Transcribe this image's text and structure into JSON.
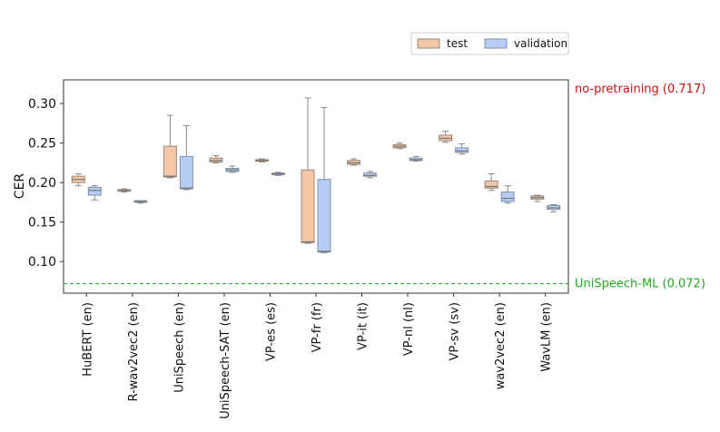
{
  "chart_data": {
    "type": "box",
    "title": "",
    "xlabel": "",
    "ylabel": "CER",
    "ylim": [
      0.06,
      0.33
    ],
    "yticks": [
      0.1,
      0.15,
      0.2,
      0.25,
      0.3
    ],
    "ytick_labels": [
      "0.10",
      "0.15",
      "0.20",
      "0.25",
      "0.30"
    ],
    "legend": {
      "position": "top-right",
      "entries": [
        "test",
        "validation"
      ]
    },
    "series": [
      {
        "name": "test",
        "color": "#f2c6a6",
        "edge": "#9a8878"
      },
      {
        "name": "validation",
        "color": "#b6cdf3",
        "edge": "#8090a8"
      }
    ],
    "categories": [
      "HuBERT (en)",
      "R-wav2vec2 (en)",
      "UniSpeech (en)",
      "UniSpeech-SAT (en)",
      "VP-es (es)",
      "VP-fr (fr)",
      "VP-it (it)",
      "VP-nl (nl)",
      "VP-sv (sv)",
      "wav2vec2 (en)",
      "WavLM (en)"
    ],
    "boxes": {
      "test": [
        {
          "min": 0.196,
          "q1": 0.2,
          "median": 0.204,
          "q3": 0.208,
          "max": 0.211
        },
        {
          "min": 0.188,
          "q1": 0.189,
          "median": 0.19,
          "q3": 0.191,
          "max": 0.192
        },
        {
          "min": 0.206,
          "q1": 0.207,
          "median": 0.208,
          "q3": 0.246,
          "max": 0.285
        },
        {
          "min": 0.225,
          "q1": 0.226,
          "median": 0.228,
          "q3": 0.231,
          "max": 0.234
        },
        {
          "min": 0.226,
          "q1": 0.227,
          "median": 0.228,
          "q3": 0.229,
          "max": 0.23
        },
        {
          "min": 0.123,
          "q1": 0.124,
          "median": 0.125,
          "q3": 0.216,
          "max": 0.307
        },
        {
          "min": 0.222,
          "q1": 0.223,
          "median": 0.225,
          "q3": 0.228,
          "max": 0.23
        },
        {
          "min": 0.243,
          "q1": 0.244,
          "median": 0.246,
          "q3": 0.248,
          "max": 0.25
        },
        {
          "min": 0.251,
          "q1": 0.253,
          "median": 0.256,
          "q3": 0.26,
          "max": 0.265
        },
        {
          "min": 0.19,
          "q1": 0.193,
          "median": 0.195,
          "q3": 0.202,
          "max": 0.211
        },
        {
          "min": 0.176,
          "q1": 0.179,
          "median": 0.181,
          "q3": 0.183,
          "max": 0.184
        }
      ],
      "validation": [
        {
          "min": 0.178,
          "q1": 0.184,
          "median": 0.19,
          "q3": 0.194,
          "max": 0.196
        },
        {
          "min": 0.174,
          "q1": 0.175,
          "median": 0.176,
          "q3": 0.177,
          "max": 0.177
        },
        {
          "min": 0.191,
          "q1": 0.192,
          "median": 0.193,
          "q3": 0.233,
          "max": 0.272
        },
        {
          "min": 0.213,
          "q1": 0.214,
          "median": 0.216,
          "q3": 0.218,
          "max": 0.221
        },
        {
          "min": 0.209,
          "q1": 0.21,
          "median": 0.211,
          "q3": 0.212,
          "max": 0.213
        },
        {
          "min": 0.111,
          "q1": 0.112,
          "median": 0.113,
          "q3": 0.204,
          "max": 0.295
        },
        {
          "min": 0.206,
          "q1": 0.208,
          "median": 0.209,
          "q3": 0.212,
          "max": 0.214
        },
        {
          "min": 0.227,
          "q1": 0.228,
          "median": 0.229,
          "q3": 0.231,
          "max": 0.233
        },
        {
          "min": 0.236,
          "q1": 0.238,
          "median": 0.24,
          "q3": 0.244,
          "max": 0.249
        },
        {
          "min": 0.174,
          "q1": 0.176,
          "median": 0.18,
          "q3": 0.188,
          "max": 0.196
        },
        {
          "min": 0.163,
          "q1": 0.166,
          "median": 0.168,
          "q3": 0.171,
          "max": 0.172
        }
      ]
    },
    "reference_lines": [
      {
        "label": "UniSpeech-ML (0.072)",
        "value": 0.072,
        "color": "#22aa22",
        "style": "dashed",
        "in_range": true
      },
      {
        "label": "no-pretraining (0.717)",
        "value": 0.717,
        "color": "#cc1111",
        "style": "none",
        "in_range": false
      }
    ]
  }
}
